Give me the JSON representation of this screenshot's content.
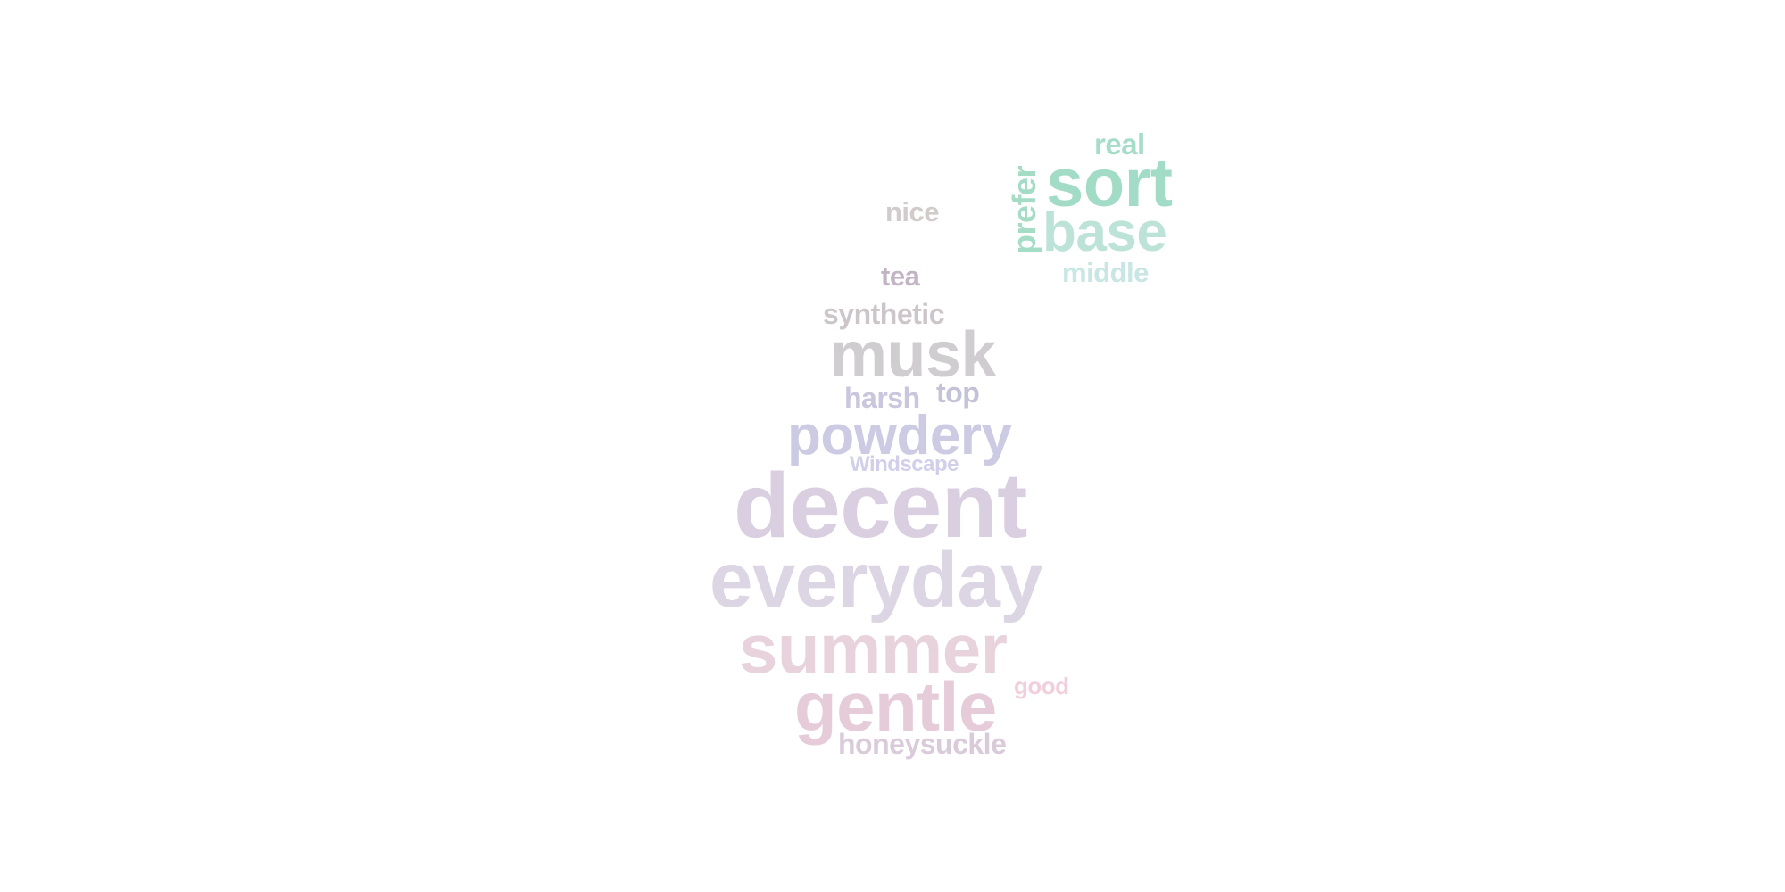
{
  "words": [
    {
      "text": "real",
      "color": "#a5ddc9",
      "rotated": false
    },
    {
      "text": "sort",
      "color": "#a3dcc6",
      "rotated": false
    },
    {
      "text": "prefer",
      "color": "#a5dcc6",
      "rotated": true
    },
    {
      "text": "base",
      "color": "#bde3d8",
      "rotated": false
    },
    {
      "text": "middle",
      "color": "#c8e6e3",
      "rotated": false
    },
    {
      "text": "nice",
      "color": "#d1cbcb",
      "rotated": false
    },
    {
      "text": "tea",
      "color": "#c2b4c5",
      "rotated": false
    },
    {
      "text": "synthetic",
      "color": "#ccc6cb",
      "rotated": false
    },
    {
      "text": "musk",
      "color": "#d0cdd1",
      "rotated": false
    },
    {
      "text": "harsh",
      "color": "#c9c6de",
      "rotated": false
    },
    {
      "text": "top",
      "color": "#c4c2d6",
      "rotated": false
    },
    {
      "text": "powdery",
      "color": "#cdcae4",
      "rotated": false
    },
    {
      "text": "Windscape",
      "color": "#d1cfe9",
      "rotated": false
    },
    {
      "text": "decent",
      "color": "#dacfe1",
      "rotated": false
    },
    {
      "text": "everyday",
      "color": "#dcd5e4",
      "rotated": false
    },
    {
      "text": "summer",
      "color": "#e8d3dd",
      "rotated": false
    },
    {
      "text": "good",
      "color": "#f1cfdc",
      "rotated": false
    },
    {
      "text": "gentle",
      "color": "#e5ccd8",
      "rotated": false
    },
    {
      "text": "honeysuckle",
      "color": "#dacbdb",
      "rotated": false
    }
  ]
}
